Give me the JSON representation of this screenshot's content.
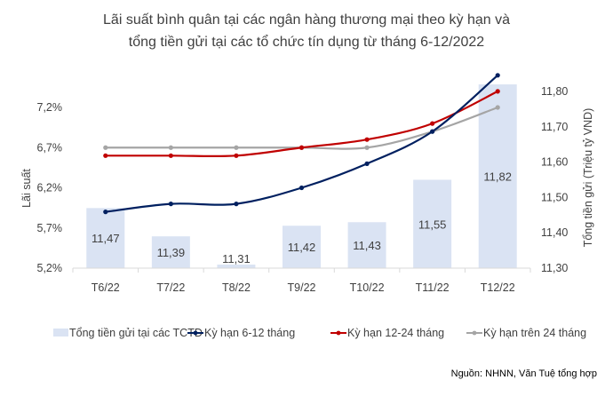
{
  "chart_data": {
    "type": "bar+line",
    "title": [
      "Lãi suất bình quân tại các ngân hàng thương mại theo kỳ hạn và",
      "tổng tiền gửi tại các tổ chức tín dụng từ tháng 6-12/2022"
    ],
    "categories": [
      "T6/22",
      "T7/22",
      "T8/22",
      "T9/22",
      "T10/22",
      "T11/22",
      "T12/22"
    ],
    "ylabel": "Lãi suất",
    "y2label": "Tổng tiền gửi (Triệu tỷ VND)",
    "ylim": [
      5.2,
      7.7
    ],
    "yticks": [
      "5,2%",
      "5,7%",
      "6,2%",
      "6,7%",
      "7,2%"
    ],
    "ytick_values": [
      5.2,
      5.7,
      6.2,
      6.7,
      7.2
    ],
    "y2lim": [
      11.3,
      11.85
    ],
    "y2ticks": [
      "11,30",
      "11,40",
      "11,50",
      "11,60",
      "11,70",
      "11,80"
    ],
    "y2tick_values": [
      11.3,
      11.4,
      11.5,
      11.6,
      11.7,
      11.8
    ],
    "grid": false,
    "legend_position": "bottom",
    "bar_series": {
      "name": "Tổng tiền gửi tại các TCTD",
      "axis": "right",
      "values": [
        11.47,
        11.39,
        11.31,
        11.42,
        11.43,
        11.55,
        11.82
      ],
      "labels": [
        "11,47",
        "11,39",
        "11,31",
        "11,42",
        "11,43",
        "11,55",
        "11,82"
      ],
      "color": "#dae3f3"
    },
    "series": [
      {
        "name": "Kỳ hạn 6-12 tháng",
        "axis": "left",
        "values": [
          5.9,
          6.0,
          6.0,
          6.2,
          6.5,
          6.9,
          7.6
        ],
        "color": "#002060"
      },
      {
        "name": "Kỳ hạn 12-24 tháng",
        "axis": "left",
        "values": [
          6.6,
          6.6,
          6.6,
          6.7,
          6.8,
          7.0,
          7.4
        ],
        "color": "#c00000"
      },
      {
        "name": "Kỳ hạn trên 24 tháng",
        "axis": "left",
        "values": [
          6.7,
          6.7,
          6.7,
          6.7,
          6.7,
          6.9,
          7.2
        ],
        "color": "#a5a5a5"
      }
    ],
    "source": "Nguồn: NHNN, Văn Tuệ tổng hợp"
  }
}
